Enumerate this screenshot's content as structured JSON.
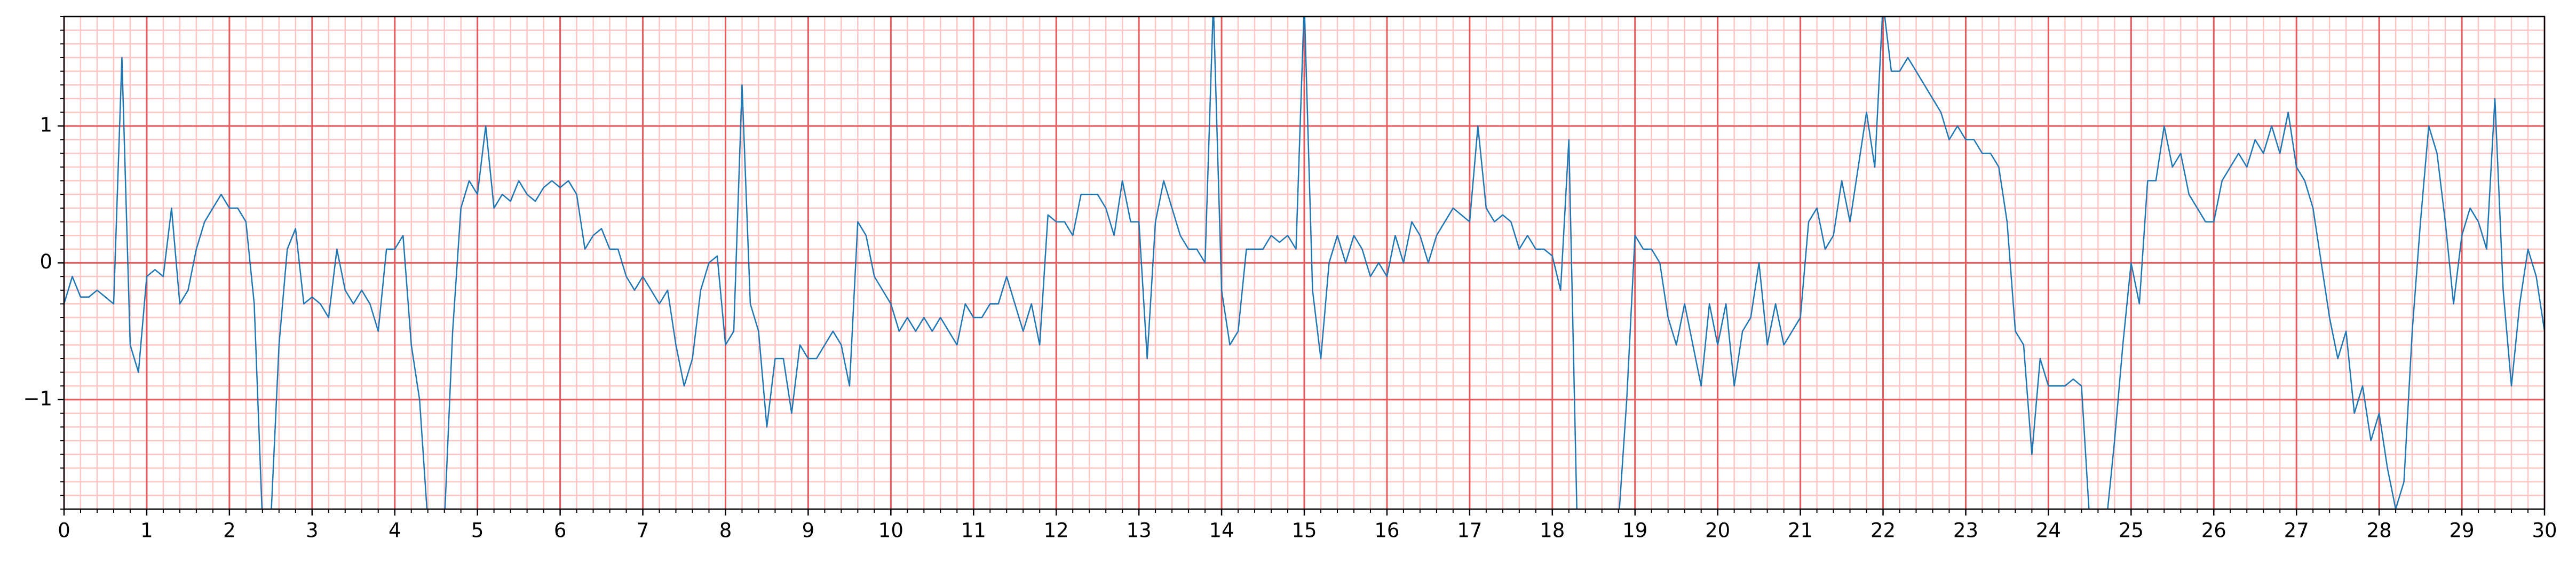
{
  "chart_data": {
    "type": "line",
    "x": [
      0,
      0.1,
      0.2,
      0.3,
      0.4,
      0.5,
      0.6,
      0.7,
      0.8,
      0.9,
      1,
      1.1,
      1.2,
      1.3,
      1.4,
      1.5,
      1.6,
      1.7,
      1.8,
      1.9,
      2,
      2.1,
      2.2,
      2.3,
      2.4,
      2.5,
      2.6,
      2.7,
      2.8,
      2.9,
      3,
      3.1,
      3.2,
      3.3,
      3.4,
      3.5,
      3.6,
      3.7,
      3.8,
      3.9,
      4,
      4.1,
      4.2,
      4.3,
      4.4,
      4.5,
      4.6,
      4.7,
      4.8,
      4.9,
      5,
      5.1,
      5.2,
      5.3,
      5.4,
      5.5,
      5.6,
      5.7,
      5.8,
      5.9,
      6,
      6.1,
      6.2,
      6.3,
      6.4,
      6.5,
      6.6,
      6.7,
      6.8,
      6.9,
      7,
      7.1,
      7.2,
      7.3,
      7.4,
      7.5,
      7.6,
      7.7,
      7.8,
      7.9,
      8,
      8.1,
      8.2,
      8.3,
      8.4,
      8.5,
      8.6,
      8.7,
      8.8,
      8.9,
      9,
      9.1,
      9.2,
      9.3,
      9.4,
      9.5,
      9.6,
      9.7,
      9.8,
      9.9,
      10,
      10.1,
      10.2,
      10.3,
      10.4,
      10.5,
      10.6,
      10.7,
      10.8,
      10.9,
      11,
      11.1,
      11.2,
      11.3,
      11.4,
      11.5,
      11.6,
      11.7,
      11.8,
      11.9,
      12,
      12.1,
      12.2,
      12.3,
      12.4,
      12.5,
      12.6,
      12.7,
      12.8,
      12.9,
      13,
      13.1,
      13.2,
      13.3,
      13.4,
      13.5,
      13.6,
      13.7,
      13.8,
      13.9,
      14,
      14.1,
      14.2,
      14.3,
      14.4,
      14.5,
      14.6,
      14.7,
      14.8,
      14.9,
      15,
      15.1,
      15.2,
      15.3,
      15.4,
      15.5,
      15.6,
      15.7,
      15.8,
      15.9,
      16,
      16.1,
      16.2,
      16.3,
      16.4,
      16.5,
      16.6,
      16.7,
      16.8,
      16.9,
      17,
      17.1,
      17.2,
      17.3,
      17.4,
      17.5,
      17.6,
      17.7,
      17.8,
      17.9,
      18,
      18.1,
      18.2,
      18.3,
      18.4,
      18.5,
      18.6,
      18.7,
      18.8,
      18.9,
      19,
      19.1,
      19.2,
      19.3,
      19.4,
      19.5,
      19.6,
      19.7,
      19.8,
      19.9,
      20,
      20.1,
      20.2,
      20.3,
      20.4,
      20.5,
      20.6,
      20.7,
      20.8,
      20.9,
      21,
      21.1,
      21.2,
      21.3,
      21.4,
      21.5,
      21.6,
      21.7,
      21.8,
      21.9,
      22,
      22.1,
      22.2,
      22.3,
      22.4,
      22.5,
      22.6,
      22.7,
      22.8,
      22.9,
      23,
      23.1,
      23.2,
      23.3,
      23.4,
      23.5,
      23.6,
      23.7,
      23.8,
      23.9,
      24,
      24.1,
      24.2,
      24.3,
      24.4,
      24.5,
      24.6,
      24.7,
      24.8,
      24.9,
      25,
      25.1,
      25.2,
      25.3,
      25.4,
      25.5,
      25.6,
      25.7,
      25.8,
      25.9,
      26,
      26.1,
      26.2,
      26.3,
      26.4,
      26.5,
      26.6,
      26.7,
      26.8,
      26.9,
      27,
      27.1,
      27.2,
      27.3,
      27.4,
      27.5,
      27.6,
      27.7,
      27.8,
      27.9,
      28,
      28.1,
      28.2,
      28.3,
      28.4,
      28.5,
      28.6,
      28.7,
      28.8,
      28.9,
      29,
      29.1,
      29.2,
      29.3,
      29.4,
      29.5,
      29.6,
      29.7,
      29.8,
      29.9,
      30
    ],
    "series": [
      {
        "color": "#1f77b4",
        "values": [
          -0.3,
          -0.1,
          -0.25,
          -0.25,
          -0.2,
          -0.25,
          -0.3,
          1.5,
          -0.6,
          -0.8,
          -0.1,
          -0.05,
          -0.1,
          0.4,
          -0.3,
          -0.2,
          0.1,
          0.3,
          0.4,
          0.5,
          0.4,
          0.4,
          0.3,
          -0.3,
          -1.9,
          -1.9,
          -0.6,
          0.1,
          0.25,
          -0.3,
          -0.25,
          -0.3,
          -0.4,
          0.1,
          -0.2,
          -0.3,
          -0.2,
          -0.3,
          -0.5,
          0.1,
          0.1,
          0.2,
          -0.6,
          -1.0,
          -1.9,
          -1.9,
          -1.9,
          -0.5,
          0.4,
          0.6,
          0.5,
          1.0,
          0.4,
          0.5,
          0.45,
          0.6,
          0.5,
          0.45,
          0.55,
          0.6,
          0.55,
          0.6,
          0.5,
          0.1,
          0.2,
          0.25,
          0.1,
          0.1,
          -0.1,
          -0.2,
          -0.1,
          -0.2,
          -0.3,
          -0.2,
          -0.6,
          -0.9,
          -0.7,
          -0.2,
          0.0,
          0.05,
          -0.6,
          -0.5,
          1.3,
          -0.3,
          -0.5,
          -1.2,
          -0.7,
          -0.7,
          -1.1,
          -0.6,
          -0.7,
          -0.7,
          -0.6,
          -0.5,
          -0.6,
          -0.9,
          0.3,
          0.2,
          -0.1,
          -0.2,
          -0.3,
          -0.5,
          -0.4,
          -0.5,
          -0.4,
          -0.5,
          -0.4,
          -0.5,
          -0.6,
          -0.3,
          -0.4,
          -0.4,
          -0.3,
          -0.3,
          -0.1,
          -0.3,
          -0.5,
          -0.3,
          -0.6,
          0.35,
          0.3,
          0.3,
          0.2,
          0.5,
          0.5,
          0.5,
          0.4,
          0.2,
          0.6,
          0.3,
          0.3,
          -0.7,
          0.3,
          0.6,
          0.4,
          0.2,
          0.1,
          0.1,
          0.0,
          1.9,
          -0.2,
          -0.6,
          -0.5,
          0.1,
          0.1,
          0.1,
          0.2,
          0.15,
          0.2,
          0.1,
          1.9,
          -0.2,
          -0.7,
          0.0,
          0.2,
          0.0,
          0.2,
          0.1,
          -0.1,
          0.0,
          -0.1,
          0.2,
          0.0,
          0.3,
          0.2,
          0.0,
          0.2,
          0.3,
          0.4,
          0.35,
          0.3,
          1.0,
          0.4,
          0.3,
          0.35,
          0.3,
          0.1,
          0.2,
          0.1,
          0.1,
          0.05,
          -0.2,
          0.9,
          -1.9,
          -1.9,
          -1.9,
          -1.9,
          -1.9,
          -1.9,
          -1.0,
          0.2,
          0.1,
          0.1,
          0.0,
          -0.4,
          -0.6,
          -0.3,
          -0.6,
          -0.9,
          -0.3,
          -0.6,
          -0.3,
          -0.9,
          -0.5,
          -0.4,
          0.0,
          -0.6,
          -0.3,
          -0.6,
          -0.5,
          -0.4,
          0.3,
          0.4,
          0.1,
          0.2,
          0.6,
          0.3,
          0.7,
          1.1,
          0.7,
          1.9,
          1.4,
          1.4,
          1.5,
          1.4,
          1.3,
          1.2,
          1.1,
          0.9,
          1.0,
          0.9,
          0.9,
          0.8,
          0.8,
          0.7,
          0.3,
          -0.5,
          -0.6,
          -1.4,
          -0.7,
          -0.9,
          -0.9,
          -0.9,
          -0.85,
          -0.9,
          -1.9,
          -1.9,
          -1.9,
          -1.3,
          -0.6,
          0.0,
          -0.3,
          0.6,
          0.6,
          1.0,
          0.7,
          0.8,
          0.5,
          0.4,
          0.3,
          0.3,
          0.6,
          0.7,
          0.8,
          0.7,
          0.9,
          0.8,
          1.0,
          0.8,
          1.1,
          0.7,
          0.6,
          0.4,
          0.0,
          -0.4,
          -0.7,
          -0.5,
          -1.1,
          -0.9,
          -1.3,
          -1.1,
          -1.5,
          -1.8,
          -1.6,
          -0.5,
          0.3,
          1.0,
          0.8,
          0.3,
          -0.3,
          0.2,
          0.4,
          0.3,
          0.1,
          1.2,
          -0.2,
          -0.9,
          -0.3,
          0.1,
          -0.1,
          -0.5
        ]
      }
    ],
    "xlim": [
      0,
      30
    ],
    "ylim": [
      -1.8,
      1.8
    ],
    "xticks": [
      0,
      1,
      2,
      3,
      4,
      5,
      6,
      7,
      8,
      9,
      10,
      11,
      12,
      13,
      14,
      15,
      16,
      17,
      18,
      19,
      20,
      21,
      22,
      23,
      24,
      25,
      26,
      27,
      28,
      29,
      30
    ],
    "yticks": [
      {
        "value": -1,
        "label": "−1"
      },
      0,
      1
    ],
    "xminorticks": [
      0,
      0.2,
      0.4,
      0.6,
      0.8,
      1,
      1.2,
      1.4,
      1.6,
      1.8,
      2,
      2.2,
      2.4,
      2.6,
      2.8,
      3,
      3.2,
      3.4,
      3.6,
      3.8,
      4,
      4.2,
      4.4,
      4.6,
      4.8,
      5,
      5.2,
      5.4,
      5.6,
      5.8,
      6,
      6.2,
      6.4,
      6.6,
      6.8,
      7,
      7.2,
      7.4,
      7.6,
      7.8,
      8,
      8.2,
      8.4,
      8.6,
      8.8,
      9,
      9.2,
      9.4,
      9.6,
      9.8,
      10,
      10.2,
      10.4,
      10.6,
      10.8,
      11,
      11.2,
      11.4,
      11.6,
      11.8,
      12,
      12.2,
      12.4,
      12.6,
      12.8,
      13,
      13.2,
      13.4,
      13.6,
      13.8,
      14,
      14.2,
      14.4,
      14.6,
      14.8,
      15,
      15.2,
      15.4,
      15.6,
      15.8,
      16,
      16.2,
      16.4,
      16.6,
      16.8,
      17,
      17.2,
      17.4,
      17.6,
      17.8,
      18,
      18.2,
      18.4,
      18.6,
      18.8,
      19,
      19.2,
      19.4,
      19.6,
      19.8,
      20,
      20.2,
      20.4,
      20.6,
      20.8,
      21,
      21.2,
      21.4,
      21.6,
      21.8,
      22,
      22.2,
      22.4,
      22.6,
      22.8,
      23,
      23.2,
      23.4,
      23.6,
      23.8,
      24,
      24.2,
      24.4,
      24.6,
      24.8,
      25,
      25.2,
      25.4,
      25.6,
      25.8,
      26,
      26.2,
      26.4,
      26.6,
      26.8,
      27,
      27.2,
      27.4,
      27.6,
      27.8,
      28,
      28.2,
      28.4,
      28.6,
      28.8,
      29,
      29.2,
      29.4,
      29.6,
      29.8,
      30
    ],
    "yminorticks": [
      -1.8,
      -1.7,
      -1.6,
      -1.5,
      -1.4,
      -1.3,
      -1.2,
      -1.1,
      -1,
      -0.9,
      -0.8,
      -0.7,
      -0.6,
      -0.5,
      -0.4,
      -0.3,
      -0.2,
      -0.1,
      0,
      0.1,
      0.2,
      0.3,
      0.4,
      0.5,
      0.6,
      0.7,
      0.8,
      0.9,
      1,
      1.1,
      1.2,
      1.3,
      1.4,
      1.5,
      1.6,
      1.7,
      1.8
    ],
    "grid": true,
    "major_grid_color": "#e8595b",
    "minor_grid_color": "#ffc4c4"
  }
}
